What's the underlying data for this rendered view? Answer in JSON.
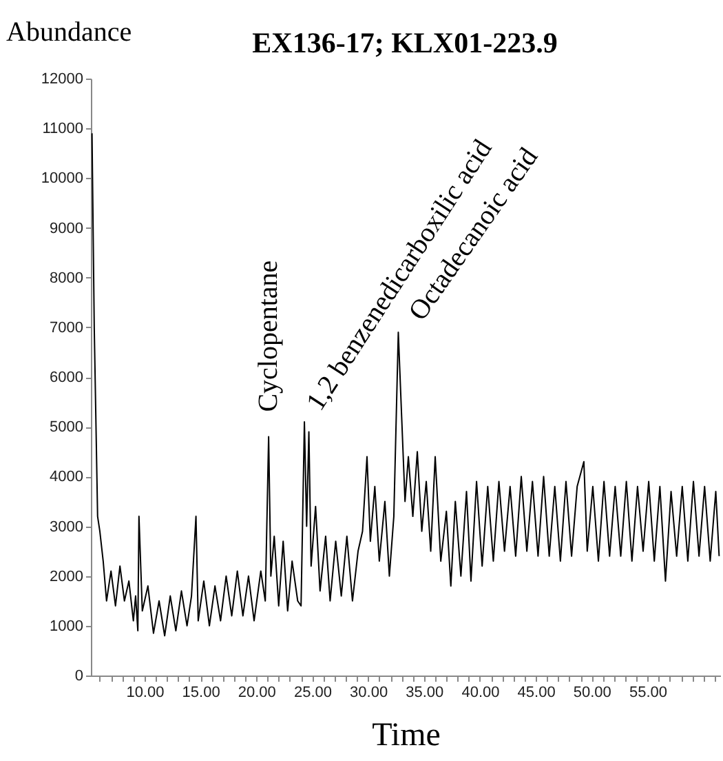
{
  "chart_data": {
    "type": "line",
    "title": "EX136-17; KLX01-223.9",
    "xlabel": "Time",
    "ylabel": "Abundance",
    "xlim": [
      5.2,
      61.5
    ],
    "ylim": [
      0,
      12000
    ],
    "yticks": [
      0,
      1000,
      2000,
      3000,
      4000,
      5000,
      6000,
      7000,
      8000,
      9000,
      10000,
      11000,
      12000
    ],
    "xticks": [
      {
        "value": 6,
        "label": null
      },
      {
        "value": 7,
        "label": null
      },
      {
        "value": 8,
        "label": null
      },
      {
        "value": 9,
        "label": null
      },
      {
        "value": 10,
        "label": "10.00"
      },
      {
        "value": 11,
        "label": null
      },
      {
        "value": 12,
        "label": null
      },
      {
        "value": 13,
        "label": null
      },
      {
        "value": 14,
        "label": null
      },
      {
        "value": 15,
        "label": "15.00"
      },
      {
        "value": 16,
        "label": null
      },
      {
        "value": 17,
        "label": null
      },
      {
        "value": 18,
        "label": null
      },
      {
        "value": 19,
        "label": null
      },
      {
        "value": 20,
        "label": "20.00"
      },
      {
        "value": 21,
        "label": null
      },
      {
        "value": 22,
        "label": null
      },
      {
        "value": 23,
        "label": null
      },
      {
        "value": 24,
        "label": null
      },
      {
        "value": 25,
        "label": "25.00"
      },
      {
        "value": 26,
        "label": null
      },
      {
        "value": 27,
        "label": null
      },
      {
        "value": 28,
        "label": null
      },
      {
        "value": 29,
        "label": null
      },
      {
        "value": 30,
        "label": "30.00"
      },
      {
        "value": 31,
        "label": null
      },
      {
        "value": 32,
        "label": null
      },
      {
        "value": 33,
        "label": null
      },
      {
        "value": 34,
        "label": null
      },
      {
        "value": 35,
        "label": "35.00"
      },
      {
        "value": 36,
        "label": null
      },
      {
        "value": 37,
        "label": null
      },
      {
        "value": 38,
        "label": null
      },
      {
        "value": 39,
        "label": null
      },
      {
        "value": 40,
        "label": "40.00"
      },
      {
        "value": 41,
        "label": null
      },
      {
        "value": 42,
        "label": null
      },
      {
        "value": 43,
        "label": null
      },
      {
        "value": 44,
        "label": null
      },
      {
        "value": 45,
        "label": "45.00"
      },
      {
        "value": 46,
        "label": null
      },
      {
        "value": 47,
        "label": null
      },
      {
        "value": 48,
        "label": null
      },
      {
        "value": 49,
        "label": null
      },
      {
        "value": 50,
        "label": "50.00"
      },
      {
        "value": 51,
        "label": null
      },
      {
        "value": 52,
        "label": null
      },
      {
        "value": 53,
        "label": null
      },
      {
        "value": 54,
        "label": null
      },
      {
        "value": 55,
        "label": "55.00"
      },
      {
        "value": 56,
        "label": null
      },
      {
        "value": 57,
        "label": null
      },
      {
        "value": 58,
        "label": null
      },
      {
        "value": 59,
        "label": null
      },
      {
        "value": 60,
        "label": null
      },
      {
        "value": 61,
        "label": null
      }
    ],
    "grid": false,
    "marker": "none",
    "line_style": "solid",
    "annotations": [
      {
        "text": "Cyclopentane",
        "x": 21.1,
        "y": 4800
      },
      {
        "text": "1,2 benzenedicarboxilic acid",
        "x": 24.3,
        "y": 5100
      },
      {
        "text": "Octadecanoic acid",
        "x": 32.7,
        "y": 6900
      }
    ],
    "series": [
      {
        "color": "#000000",
        "x": [
          5.3,
          5.5,
          5.8,
          6.0,
          6.3,
          6.6,
          7.0,
          7.4,
          7.8,
          8.2,
          8.6,
          9.0,
          9.2,
          9.4,
          9.5,
          9.8,
          10.3,
          10.8,
          11.3,
          11.8,
          12.3,
          12.8,
          13.3,
          13.8,
          14.2,
          14.6,
          14.8,
          15.3,
          15.8,
          16.3,
          16.8,
          17.3,
          17.8,
          18.3,
          18.8,
          19.3,
          19.8,
          20.4,
          20.8,
          21.1,
          21.3,
          21.6,
          22.0,
          22.4,
          22.8,
          23.2,
          23.7,
          24.0,
          24.3,
          24.5,
          24.7,
          24.9,
          25.3,
          25.7,
          26.2,
          26.6,
          27.1,
          27.6,
          28.1,
          28.6,
          29.1,
          29.5,
          29.9,
          30.2,
          30.6,
          31.0,
          31.5,
          31.9,
          32.3,
          32.7,
          33.0,
          33.3,
          33.6,
          34.0,
          34.4,
          34.8,
          35.2,
          35.6,
          36.0,
          36.5,
          37.0,
          37.4,
          37.8,
          38.3,
          38.8,
          39.2,
          39.7,
          40.2,
          40.7,
          41.2,
          41.7,
          42.2,
          42.7,
          43.2,
          43.7,
          44.2,
          44.7,
          45.2,
          45.7,
          46.2,
          46.7,
          47.2,
          47.7,
          48.2,
          48.7,
          49.3,
          49.6,
          50.1,
          50.6,
          51.1,
          51.6,
          52.1,
          52.6,
          53.1,
          53.6,
          54.1,
          54.6,
          55.1,
          55.6,
          56.1,
          56.6,
          57.1,
          57.6,
          58.1,
          58.6,
          59.1,
          59.6,
          60.1,
          60.6,
          61.1,
          61.4
        ],
        "values": [
          10900,
          7000,
          3200,
          2900,
          2300,
          1500,
          2100,
          1400,
          2200,
          1500,
          1900,
          1100,
          1600,
          900,
          3200,
          1300,
          1800,
          850,
          1500,
          800,
          1600,
          900,
          1700,
          1000,
          1600,
          3200,
          1100,
          1900,
          1000,
          1800,
          1100,
          2000,
          1200,
          2100,
          1200,
          2000,
          1100,
          2100,
          1500,
          4800,
          2000,
          2800,
          1400,
          2700,
          1300,
          2300,
          1500,
          1400,
          5100,
          3000,
          4900,
          2200,
          3400,
          1700,
          2800,
          1500,
          2700,
          1600,
          2800,
          1500,
          2500,
          2900,
          4400,
          2700,
          3800,
          2300,
          3500,
          2000,
          3200,
          6900,
          5200,
          3500,
          4400,
          3200,
          4500,
          2900,
          3900,
          2500,
          4400,
          2300,
          3300,
          1800,
          3500,
          2000,
          3700,
          1900,
          3900,
          2200,
          3800,
          2300,
          3900,
          2500,
          3800,
          2400,
          4000,
          2500,
          3900,
          2400,
          4000,
          2400,
          3800,
          2300,
          3900,
          2400,
          3800,
          4300,
          2500,
          3800,
          2300,
          3900,
          2400,
          3800,
          2400,
          3900,
          2300,
          3800,
          2500,
          3900,
          2300,
          3800,
          1900,
          3700,
          2400,
          3800,
          2300,
          3900,
          2400,
          3800,
          2300,
          3700,
          2400
        ]
      }
    ]
  }
}
